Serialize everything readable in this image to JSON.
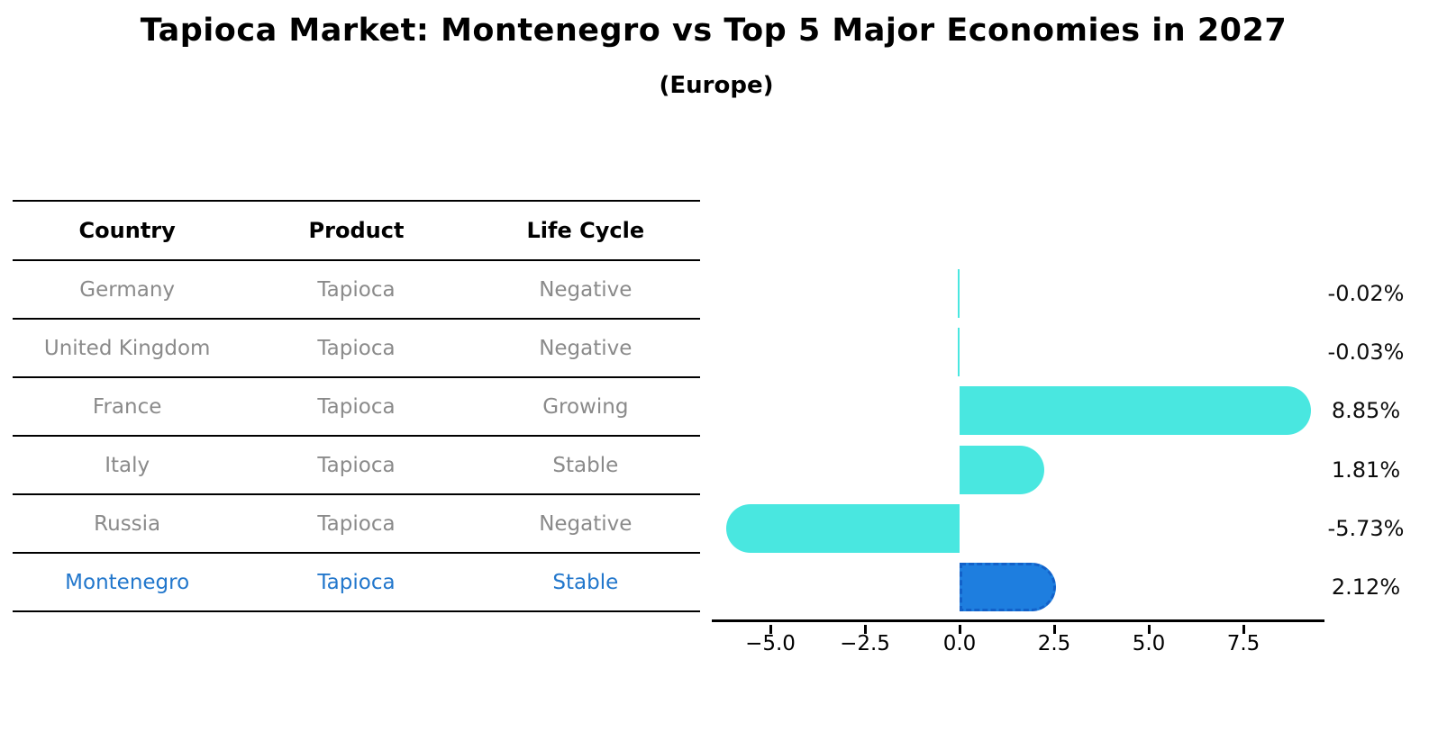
{
  "title": "Tapioca Market: Montenegro vs Top 5 Major Economies in 2027",
  "subtitle": "(Europe)",
  "table": {
    "headers": [
      "Country",
      "Product",
      "Life Cycle"
    ],
    "rows": [
      {
        "country": "Germany",
        "product": "Tapioca",
        "life_cycle": "Negative",
        "highlight": false
      },
      {
        "country": "United Kingdom",
        "product": "Tapioca",
        "life_cycle": "Negative",
        "highlight": false
      },
      {
        "country": "France",
        "product": "Tapioca",
        "life_cycle": "Growing",
        "highlight": false
      },
      {
        "country": "Italy",
        "product": "Tapioca",
        "life_cycle": "Stable",
        "highlight": false
      },
      {
        "country": "Russia",
        "product": "Tapioca",
        "life_cycle": "Negative",
        "highlight": false
      },
      {
        "country": "Montenegro",
        "product": "Tapioca",
        "life_cycle": "Stable",
        "highlight": true
      }
    ]
  },
  "chart_data": {
    "type": "bar",
    "orientation": "horizontal",
    "title": "Tapioca Market: Montenegro vs Top 5 Major Economies in 2027",
    "subtitle": "(Europe)",
    "categories": [
      "Germany",
      "United Kingdom",
      "France",
      "Italy",
      "Russia",
      "Montenegro"
    ],
    "values": [
      -0.02,
      -0.03,
      8.85,
      1.81,
      -5.73,
      2.12
    ],
    "value_labels": [
      "-0.02%",
      "-0.03%",
      "8.85%",
      "1.81%",
      "-5.73%",
      "2.12%"
    ],
    "x_tick_labels": [
      "−5.0",
      "−2.5",
      "0.0",
      "2.5",
      "5.0",
      "7.5"
    ],
    "x_tick_values": [
      -5.0,
      -2.5,
      0.0,
      2.5,
      5.0,
      7.5
    ],
    "xlim": [
      -6.55,
      9.65
    ],
    "grid": false,
    "legend": "none",
    "highlight_index": 5,
    "colors": {
      "bar_default": "#49E7E0",
      "bar_highlight": "#1E7EDF",
      "bar_highlight_border": "#1261C9",
      "highlight_text": "#2277CC",
      "row_text": "#8A8A8A",
      "axis": "#000000"
    }
  }
}
